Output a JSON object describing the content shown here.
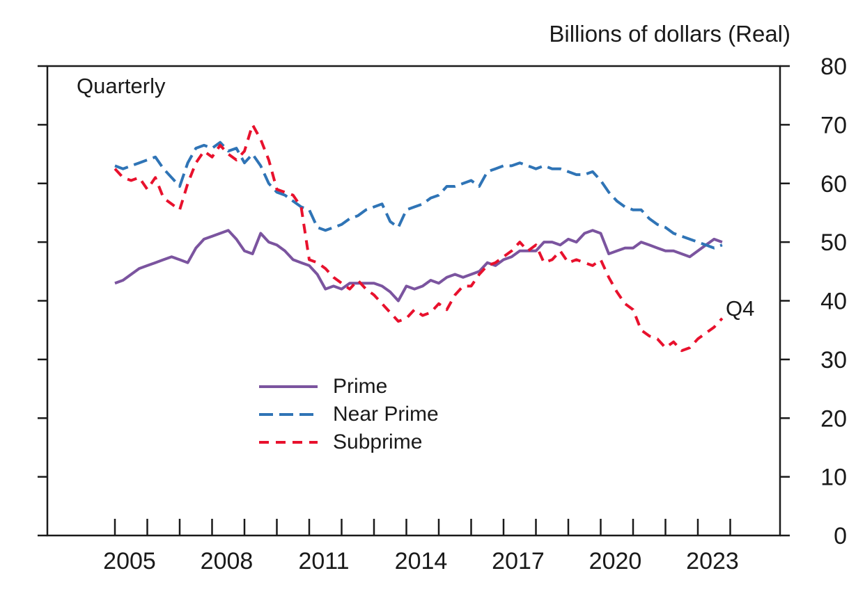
{
  "title": "Billions of dollars (Real)",
  "frequency_label": "Quarterly",
  "end_label": "Q4",
  "colors": {
    "axis": "#1a1a1a",
    "background": "#ffffff",
    "prime": "#7B549F",
    "near_prime": "#2F74B6",
    "subprime": "#E8112D"
  },
  "chart_data": {
    "type": "line",
    "title": "Billions of dollars (Real)",
    "xlabel": "",
    "ylabel": "Billions of dollars (Real)",
    "frequency": "Quarterly",
    "grid": false,
    "legend_position": "inside-lower-middle",
    "ylim": [
      0,
      80
    ],
    "y_ticks": [
      0,
      10,
      20,
      30,
      40,
      50,
      60,
      70,
      80
    ],
    "x_year_ticks": [
      2005,
      2006,
      2007,
      2008,
      2009,
      2010,
      2011,
      2012,
      2013,
      2014,
      2015,
      2016,
      2017,
      2018,
      2019,
      2020,
      2021,
      2022,
      2023,
      2024
    ],
    "x_tick_labels": [
      2005,
      2008,
      2011,
      2014,
      2017,
      2020,
      2023
    ],
    "x_start": 2005.0,
    "x_step": 0.25,
    "end_annotation": "Q4",
    "series": [
      {
        "name": "Prime",
        "color": "#7B549F",
        "dash": "solid",
        "dasharray": "",
        "values": [
          43.0,
          43.5,
          44.5,
          45.5,
          46.0,
          46.5,
          47.0,
          47.5,
          47.0,
          46.5,
          49.0,
          50.5,
          51.0,
          51.5,
          52.0,
          50.5,
          48.5,
          48.0,
          51.5,
          50.0,
          49.5,
          48.5,
          47.0,
          46.5,
          46.0,
          44.5,
          42.0,
          42.5,
          42.0,
          43.0,
          43.0,
          43.0,
          43.0,
          42.5,
          41.5,
          40.0,
          42.5,
          42.0,
          42.5,
          43.5,
          43.0,
          44.0,
          44.5,
          44.0,
          44.5,
          45.0,
          46.5,
          46.0,
          47.0,
          47.5,
          48.5,
          48.5,
          48.5,
          50.0,
          50.0,
          49.5,
          50.5,
          50.0,
          51.5,
          52.0,
          51.5,
          48.0,
          48.5,
          49.0,
          49.0,
          50.0,
          49.5,
          49.0,
          48.5,
          48.5,
          48.0,
          47.5,
          48.5,
          49.5,
          50.5,
          50.0
        ]
      },
      {
        "name": "Near Prime",
        "color": "#2F74B6",
        "dash": "dashed",
        "dasharray": "20 9",
        "values": [
          63.0,
          62.5,
          63.0,
          63.5,
          64.0,
          64.5,
          62.5,
          61.0,
          59.5,
          63.5,
          66.0,
          66.5,
          66.0,
          67.0,
          65.5,
          66.0,
          63.5,
          65.0,
          63.0,
          60.0,
          58.5,
          58.0,
          57.0,
          56.0,
          55.5,
          52.5,
          52.0,
          52.5,
          53.0,
          54.0,
          54.5,
          55.5,
          56.0,
          56.5,
          53.5,
          52.5,
          55.5,
          56.0,
          56.5,
          57.5,
          58.0,
          59.5,
          59.5,
          60.0,
          60.5,
          59.5,
          62.0,
          62.5,
          63.0,
          63.0,
          63.5,
          63.0,
          62.5,
          63.0,
          62.5,
          62.5,
          62.0,
          61.5,
          61.5,
          62.0,
          60.5,
          58.5,
          57.0,
          56.0,
          55.5,
          55.5,
          54.0,
          53.0,
          52.5,
          51.5,
          51.0,
          50.5,
          50.0,
          49.5,
          49.0,
          49.5
        ]
      },
      {
        "name": "Subprime",
        "color": "#E8112D",
        "dash": "dashed",
        "dasharray": "14 10",
        "values": [
          62.5,
          61.0,
          60.5,
          61.0,
          59.0,
          61.0,
          57.5,
          56.5,
          55.5,
          60.0,
          63.5,
          65.5,
          64.5,
          66.5,
          65.0,
          64.0,
          65.5,
          70.0,
          67.5,
          64.0,
          59.0,
          58.5,
          58.0,
          56.0,
          47.0,
          46.5,
          45.5,
          44.0,
          43.0,
          42.0,
          43.5,
          42.0,
          41.0,
          39.5,
          38.0,
          36.5,
          37.0,
          38.5,
          37.5,
          38.0,
          39.5,
          38.5,
          41.0,
          42.5,
          42.5,
          44.5,
          46.0,
          46.5,
          47.5,
          48.5,
          50.0,
          48.5,
          49.5,
          46.5,
          47.0,
          48.5,
          46.5,
          47.0,
          46.5,
          46.0,
          47.0,
          44.0,
          41.5,
          39.5,
          38.5,
          35.0,
          34.0,
          33.5,
          32.0,
          33.0,
          31.5,
          32.0,
          33.5,
          34.5,
          35.5,
          37.0
        ]
      }
    ]
  }
}
